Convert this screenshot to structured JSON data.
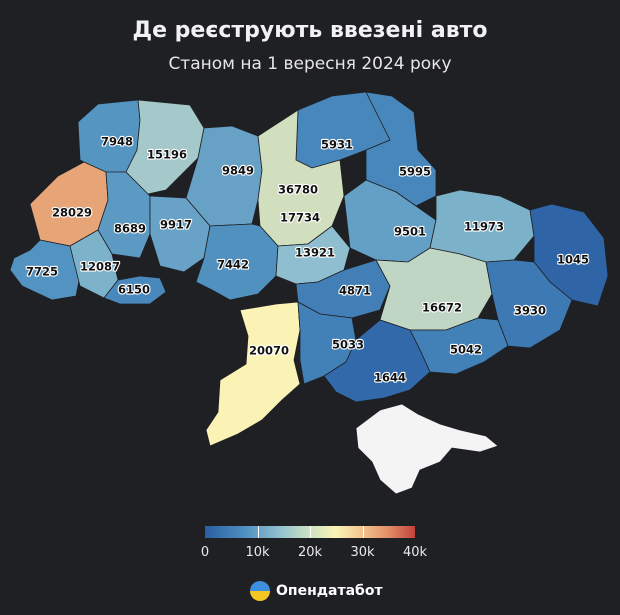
{
  "title": "Де реєструють ввезені авто",
  "subtitle": "Станом на 1 вересня 2024 року",
  "colors": {
    "background": "#1f2024",
    "low": "#2a5ea3",
    "mid": "#fbf3b6",
    "high": "#c1423c",
    "crimea": "#f4f4f4"
  },
  "legend": {
    "min": 0,
    "max": 40000,
    "ticks": [
      "0",
      "10k",
      "20k",
      "30k",
      "40k"
    ]
  },
  "regions": [
    {
      "value": 7948
    },
    {
      "value": 15196
    },
    {
      "value": 9849
    },
    {
      "value": 36780
    },
    {
      "value": 5931
    },
    {
      "value": 5995
    },
    {
      "value": 28029
    },
    {
      "value": 8689
    },
    {
      "value": 9917
    },
    {
      "value": 17734
    },
    {
      "value": 9501
    },
    {
      "value": 11973
    },
    {
      "value": 1045
    },
    {
      "value": 7725
    },
    {
      "value": 12087
    },
    {
      "value": 7442
    },
    {
      "value": 13921
    },
    {
      "value": 6150
    },
    {
      "value": 4871
    },
    {
      "value": 16672
    },
    {
      "value": 3930
    },
    {
      "value": 20070
    },
    {
      "value": 5033
    },
    {
      "value": 5042
    },
    {
      "value": 1644
    },
    {
      "value": null
    }
  ],
  "brand": {
    "name": "Опендатабот",
    "icon": "opendatabot-logo-icon"
  }
}
